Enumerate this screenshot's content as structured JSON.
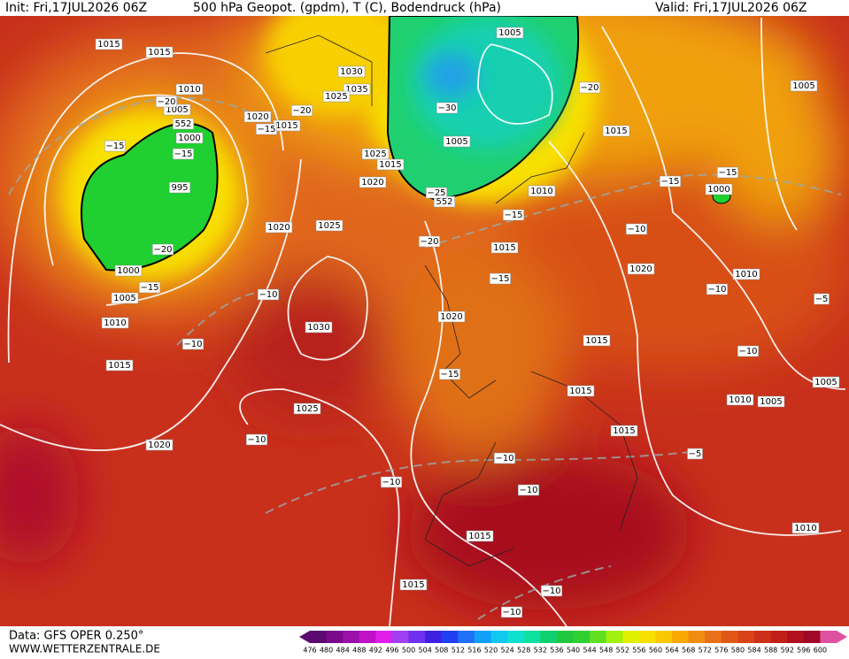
{
  "header": {
    "init": "Init: Fri,17JUL2026 06Z",
    "title": "500 hPa Geopot. (gpdm), T (C), Bodendruck (hPa)",
    "valid": "Valid: Fri,17JUL2026 06Z"
  },
  "footer": {
    "data": "Data: GFS OPER 0.250°",
    "site": "WWW.WETTERZENTRALE.DE"
  },
  "colorbar": {
    "ticks": [
      476,
      480,
      484,
      488,
      492,
      496,
      500,
      504,
      508,
      512,
      516,
      520,
      524,
      528,
      532,
      536,
      540,
      544,
      548,
      552,
      556,
      560,
      564,
      568,
      572,
      576,
      580,
      584,
      588,
      592,
      596,
      600
    ],
    "colors": [
      "#5a0a6e",
      "#7a0a8a",
      "#9a10a8",
      "#c010c8",
      "#e020e8",
      "#a040f0",
      "#7030f0",
      "#4020e0",
      "#2040f0",
      "#2070f8",
      "#10a0f8",
      "#10c8f0",
      "#10e0d0",
      "#10e0a0",
      "#10d070",
      "#20c840",
      "#30d030",
      "#60e020",
      "#a0f010",
      "#e0f000",
      "#f8e000",
      "#f8c800",
      "#f8a800",
      "#f08c10",
      "#e87018",
      "#e05818",
      "#d84418",
      "#cc3018",
      "#c02018",
      "#b01020",
      "#a00828",
      "#e050a0"
    ]
  },
  "map_labels": {
    "pressure": [
      1015,
      1015,
      1010,
      1005,
      552,
      1000,
      995,
      1000,
      1005,
      1010,
      1015,
      1020,
      1030,
      1035,
      1025,
      1020,
      1015,
      1025,
      1015,
      1020,
      1020,
      1025,
      1030,
      1025,
      1005,
      1005,
      552,
      1015,
      1010,
      1015,
      1020,
      1020,
      1015,
      1015,
      1015,
      1010,
      1010,
      1005,
      1005,
      1010,
      1015,
      1015,
      1000,
      1005
    ],
    "temperature": [
      "−20",
      "−15",
      "−15",
      "−20",
      "−15",
      "−10",
      "−10",
      "−20",
      "−15",
      "−30",
      "−20",
      "−25",
      "−20",
      "−15",
      "−15",
      "−15",
      "−15",
      "−15",
      "−10",
      "−10",
      "−10",
      "−5",
      "−10",
      "−10",
      "−10",
      "−10",
      "−5",
      "−10",
      "−10"
    ]
  }
}
